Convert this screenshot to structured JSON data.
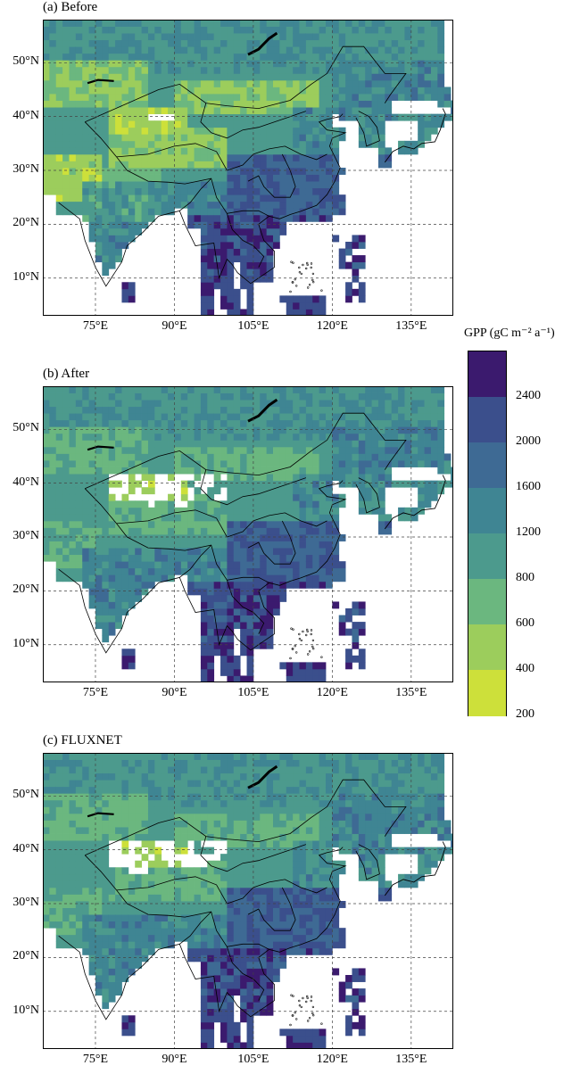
{
  "panels": [
    {
      "id": "before",
      "title": "(a) Before"
    },
    {
      "id": "after",
      "title": "(b) After"
    },
    {
      "id": "fluxnet",
      "title": "(c) FLUXNET"
    }
  ],
  "axes": {
    "lat_labels": [
      "50°N",
      "40°N",
      "30°N",
      "20°N",
      "10°N"
    ],
    "lat_values": [
      50,
      40,
      30,
      20,
      10
    ],
    "lon_labels": [
      "75°E",
      "90°E",
      "105°E",
      "120°E",
      "135°E"
    ],
    "lon_values": [
      75,
      90,
      105,
      120,
      135
    ],
    "lon_range": [
      65,
      143
    ],
    "lat_range": [
      3,
      58
    ]
  },
  "legend": {
    "title": "GPP (gC m⁻² a⁻¹)",
    "ticks": [
      "2400",
      "2000",
      "1600",
      "1200",
      "800",
      "600",
      "400",
      "200"
    ],
    "colors": [
      "#3b1a6e",
      "#3b4f8c",
      "#3e6a94",
      "#3f8593",
      "#4c9a8d",
      "#6bb77f",
      "#9ccd5c",
      "#cde03a"
    ]
  }
}
